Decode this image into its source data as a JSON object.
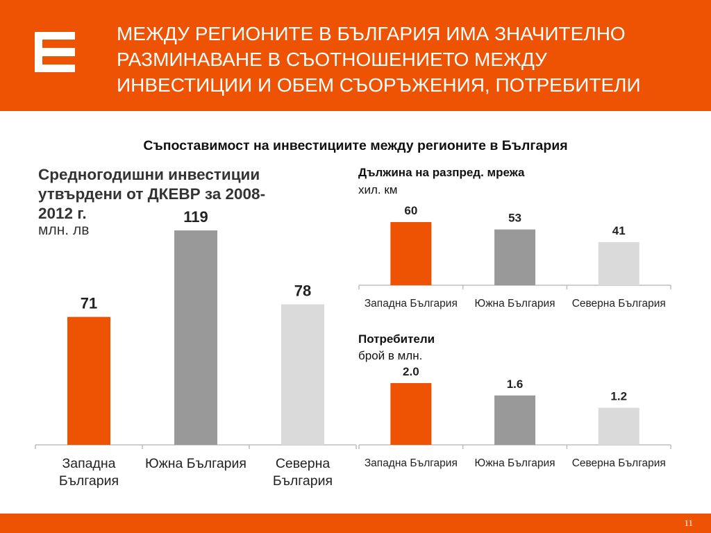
{
  "header": {
    "title_lines": [
      "МЕЖДУ РЕГИОНИТЕ В БЪЛГАРИЯ ИМА ЗНАЧИТЕЛНО",
      "РАЗМИНАВАНЕ В СЪОТНОШЕНИЕТО МЕЖДУ",
      "ИНВЕСТИЦИИ И ОБЕМ СЪОРЪЖЕНИЯ, ПОТРЕБИТЕЛИ"
    ],
    "logo": "cez-logo"
  },
  "subtitle": "Съпоставимост на инвестициите между регионите в България",
  "colors": {
    "accent": "#ee5203",
    "west": "#ee5203",
    "south": "#999999",
    "north": "#dadada"
  },
  "chart_data": [
    {
      "type": "bar",
      "title_lines": [
        "Средногодишни инвестиции",
        "утвърдени от ДКЕВР за 2008-",
        "2012 г."
      ],
      "unit": "млн. лв",
      "categories": [
        [
          "Западна",
          "България"
        ],
        [
          "Южна България"
        ],
        [
          "Северна",
          "България"
        ]
      ],
      "values": [
        "71",
        "119",
        "78"
      ]
    },
    {
      "type": "bar",
      "title": "Дължина на разпред. мрежа",
      "unit": "хил. км",
      "categories": [
        "Западна България",
        "Южна България",
        "Северна България"
      ],
      "values": [
        "60",
        "53",
        "41"
      ]
    },
    {
      "type": "bar",
      "title": "Потребители",
      "unit": "брой в млн.",
      "categories": [
        "Западна България",
        "Южна България",
        "Северна България"
      ],
      "values": [
        "2.0",
        "1.6",
        "1.2"
      ]
    }
  ],
  "footer": {
    "page_number": "11"
  }
}
